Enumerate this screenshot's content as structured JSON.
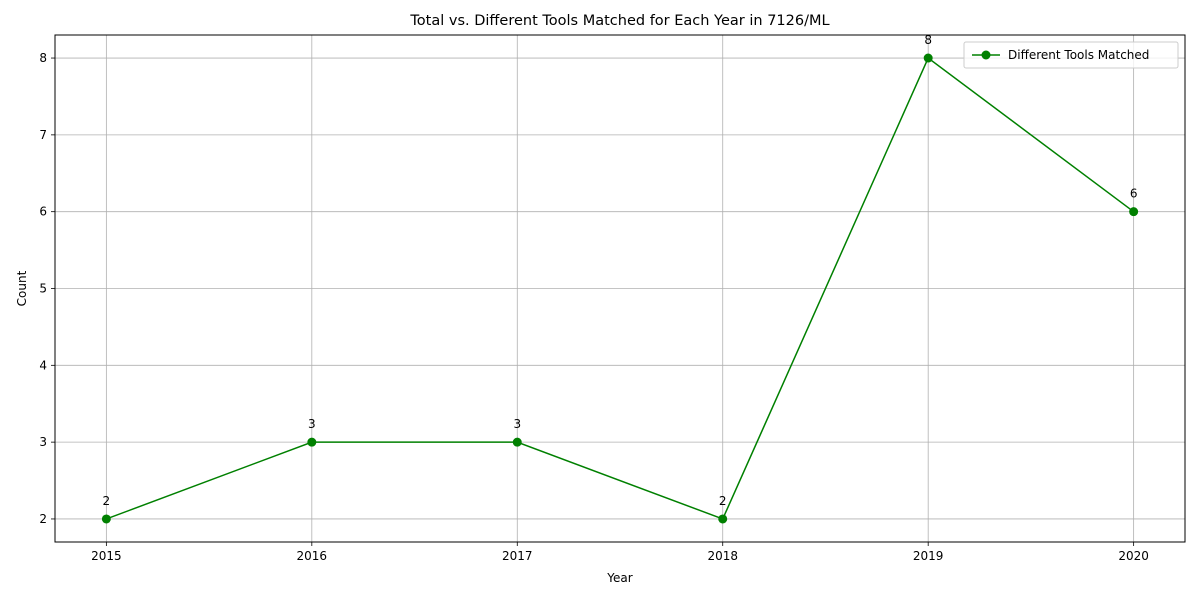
{
  "chart_data": {
    "type": "line",
    "title": "Total vs. Different Tools Matched for Each Year in 7126/ML",
    "xlabel": "Year",
    "ylabel": "Count",
    "x": [
      2015,
      2016,
      2017,
      2018,
      2019,
      2020
    ],
    "xlim": [
      2014.75,
      2020.25
    ],
    "ylim": [
      1.7,
      8.3
    ],
    "yticks": [
      2,
      3,
      4,
      5,
      6,
      7,
      8
    ],
    "grid": true,
    "legend_position": "top-right",
    "series": [
      {
        "name": "Different Tools Matched",
        "values": [
          2,
          3,
          3,
          2,
          8,
          6
        ],
        "color": "#008000",
        "marker": "circle",
        "data_labels": true
      }
    ]
  }
}
